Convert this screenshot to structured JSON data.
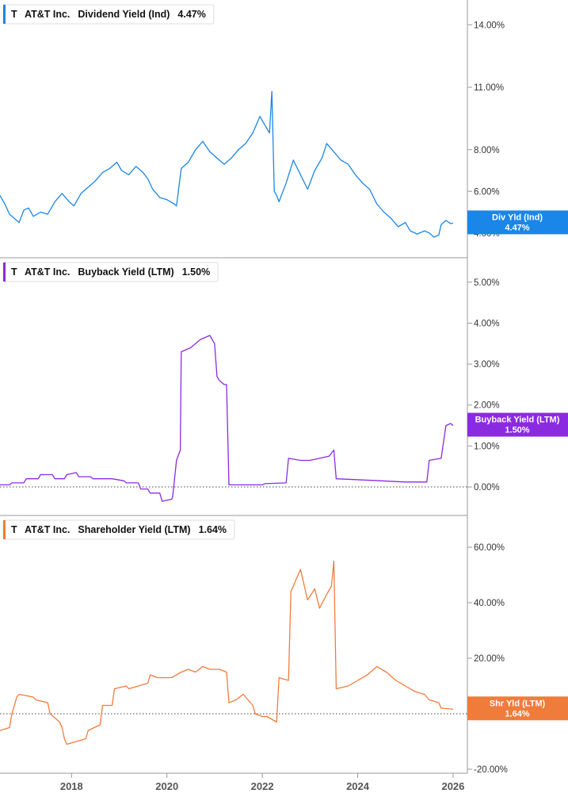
{
  "chart_data": [
    {
      "type": "line",
      "ticker": "T",
      "company": "AT&T Inc.",
      "metric": "Dividend Yield (Ind)",
      "current_value": "4.47%",
      "badge_label": "Div Yld (Ind)",
      "badge_value": "4.47%",
      "color": "#1a86e8",
      "ylim": [
        3.0,
        15.0
      ],
      "yticks": [
        4,
        6,
        8,
        11,
        14
      ],
      "ytick_labels": [
        "4.00%",
        "6.00%",
        "8.00%",
        "11.00%",
        "14.00%"
      ],
      "zero_line": false,
      "series": [
        {
          "x": [
            2016.5,
            2016.6,
            2016.7,
            2016.8,
            2016.9,
            2017.0,
            2017.1,
            2017.2,
            2017.35,
            2017.5,
            2017.65,
            2017.8,
            2017.95,
            2018.05,
            2018.2,
            2018.35,
            2018.5,
            2018.65,
            2018.8,
            2018.95,
            2019.05,
            2019.2,
            2019.35,
            2019.5,
            2019.6,
            2019.7,
            2019.85,
            2020.0,
            2020.15,
            2020.2,
            2020.3,
            2020.45,
            2020.6,
            2020.75,
            2020.9,
            2021.05,
            2021.2,
            2021.35,
            2021.5,
            2021.65,
            2021.8,
            2021.95,
            2022.05,
            2022.15,
            2022.2,
            2022.25,
            2022.3,
            2022.35,
            2022.5,
            2022.65,
            2022.8,
            2022.95,
            2023.1,
            2023.25,
            2023.35,
            2023.5,
            2023.65,
            2023.8,
            2023.95,
            2024.1,
            2024.25,
            2024.4,
            2024.55,
            2024.7,
            2024.85,
            2025.0,
            2025.1,
            2025.25,
            2025.4,
            2025.5,
            2025.6,
            2025.7,
            2025.75,
            2025.85,
            2025.95,
            2026.0
          ],
          "y": [
            5.8,
            5.4,
            4.9,
            4.7,
            4.5,
            5.1,
            5.2,
            4.8,
            5.0,
            4.9,
            5.5,
            5.9,
            5.5,
            5.3,
            5.9,
            6.2,
            6.5,
            6.9,
            7.1,
            7.4,
            7.0,
            6.8,
            7.2,
            6.9,
            6.6,
            6.1,
            5.7,
            5.6,
            5.4,
            5.3,
            7.1,
            7.4,
            8.0,
            8.4,
            7.9,
            7.6,
            7.3,
            7.6,
            8.0,
            8.3,
            8.8,
            9.6,
            9.2,
            8.8,
            10.8,
            6.0,
            5.8,
            5.5,
            6.4,
            7.5,
            6.8,
            6.1,
            7.0,
            7.6,
            8.3,
            7.9,
            7.5,
            7.3,
            6.8,
            6.4,
            6.1,
            5.4,
            5.0,
            4.7,
            4.3,
            4.5,
            4.1,
            3.95,
            4.1,
            4.0,
            3.8,
            3.9,
            4.4,
            4.6,
            4.45,
            4.47
          ]
        }
      ]
    },
    {
      "type": "line",
      "ticker": "T",
      "company": "AT&T Inc.",
      "metric": "Buyback Yield (LTM)",
      "current_value": "1.50%",
      "badge_label": "Buyback Yield (LTM)",
      "badge_value": "1.50%",
      "color": "#8a2be2",
      "ylim": [
        -0.6,
        5.5
      ],
      "yticks": [
        0,
        1,
        2,
        3,
        4,
        5
      ],
      "ytick_labels": [
        "0.00%",
        "1.00%",
        "2.00%",
        "3.00%",
        "4.00%",
        "5.00%"
      ],
      "zero_line": true,
      "series": [
        {
          "x": [
            2016.5,
            2016.7,
            2016.75,
            2017.0,
            2017.05,
            2017.3,
            2017.35,
            2017.6,
            2017.65,
            2017.85,
            2017.9,
            2018.1,
            2018.15,
            2018.4,
            2018.45,
            2018.8,
            2018.85,
            2019.1,
            2019.15,
            2019.4,
            2019.45,
            2019.6,
            2019.65,
            2019.85,
            2019.9,
            2020.1,
            2020.12,
            2020.2,
            2020.28,
            2020.3,
            2020.5,
            2020.7,
            2020.9,
            2021.0,
            2021.05,
            2021.1,
            2021.2,
            2021.25,
            2021.3,
            2022.0,
            2022.05,
            2022.5,
            2022.55,
            2022.8,
            2023.0,
            2023.2,
            2023.4,
            2023.5,
            2023.55,
            2024.5,
            2025.0,
            2025.3,
            2025.45,
            2025.5,
            2025.75,
            2025.85,
            2025.95,
            2026.0
          ],
          "y": [
            0.05,
            0.05,
            0.1,
            0.1,
            0.2,
            0.2,
            0.3,
            0.3,
            0.2,
            0.2,
            0.3,
            0.35,
            0.25,
            0.25,
            0.2,
            0.2,
            0.2,
            0.15,
            0.1,
            0.1,
            -0.05,
            -0.05,
            -0.15,
            -0.15,
            -0.35,
            -0.3,
            -0.25,
            0.65,
            0.9,
            3.3,
            3.4,
            3.6,
            3.7,
            3.5,
            2.7,
            2.6,
            2.5,
            2.5,
            0.05,
            0.05,
            0.08,
            0.1,
            0.7,
            0.65,
            0.65,
            0.7,
            0.75,
            0.9,
            0.2,
            0.15,
            0.12,
            0.12,
            0.12,
            0.65,
            0.7,
            1.5,
            1.55,
            1.5
          ]
        }
      ]
    },
    {
      "type": "line",
      "ticker": "T",
      "company": "AT&T Inc.",
      "metric": "Shareholder Yield (LTM)",
      "current_value": "1.64%",
      "badge_label": "Shr Yld (LTM)",
      "badge_value": "1.64%",
      "color": "#f07c3c",
      "ylim": [
        -20,
        70
      ],
      "yticks": [
        -20,
        0,
        20,
        40,
        60
      ],
      "ytick_labels": [
        "-20.00%",
        "0.00%",
        "20.00%",
        "40.00%",
        "60.00%"
      ],
      "zero_line": true,
      "series": [
        {
          "x": [
            2016.5,
            2016.7,
            2016.75,
            2016.85,
            2016.9,
            2017.2,
            2017.25,
            2017.5,
            2017.55,
            2017.75,
            2017.8,
            2017.85,
            2017.9,
            2018.1,
            2018.3,
            2018.35,
            2018.6,
            2018.65,
            2018.85,
            2018.9,
            2019.15,
            2019.2,
            2019.6,
            2019.65,
            2019.8,
            2020.1,
            2020.3,
            2020.45,
            2020.6,
            2020.75,
            2020.9,
            2021.1,
            2021.25,
            2021.3,
            2021.45,
            2021.6,
            2021.8,
            2021.85,
            2022.0,
            2022.1,
            2022.3,
            2022.35,
            2022.55,
            2022.6,
            2022.8,
            2022.95,
            2023.1,
            2023.2,
            2023.35,
            2023.45,
            2023.5,
            2023.55,
            2023.8,
            2024.0,
            2024.2,
            2024.4,
            2024.6,
            2024.8,
            2025.0,
            2025.2,
            2025.4,
            2025.5,
            2025.7,
            2025.75,
            2025.95,
            2026.0
          ],
          "y": [
            -6,
            -5,
            0,
            6,
            7,
            6,
            5,
            4,
            0,
            -3,
            -5,
            -9,
            -11,
            -10,
            -9,
            -6,
            -4,
            3,
            3,
            9,
            10,
            9,
            11,
            14,
            13,
            13,
            15,
            16,
            15,
            17,
            16,
            16,
            15,
            4,
            5,
            7,
            3,
            0,
            -1,
            -1,
            -3,
            13,
            12,
            44,
            52,
            41,
            45,
            38,
            43,
            46,
            55,
            9,
            10,
            12,
            14,
            17,
            15,
            12,
            10,
            8,
            7,
            5,
            4,
            2,
            1.7,
            1.64
          ]
        }
      ]
    }
  ],
  "x_axis": {
    "ticks": [
      2018,
      2020,
      2022,
      2024,
      2026
    ],
    "tick_labels": [
      "2018",
      "2020",
      "2022",
      "2024",
      "2026"
    ],
    "xlim": [
      2016.5,
      2026.3
    ]
  }
}
